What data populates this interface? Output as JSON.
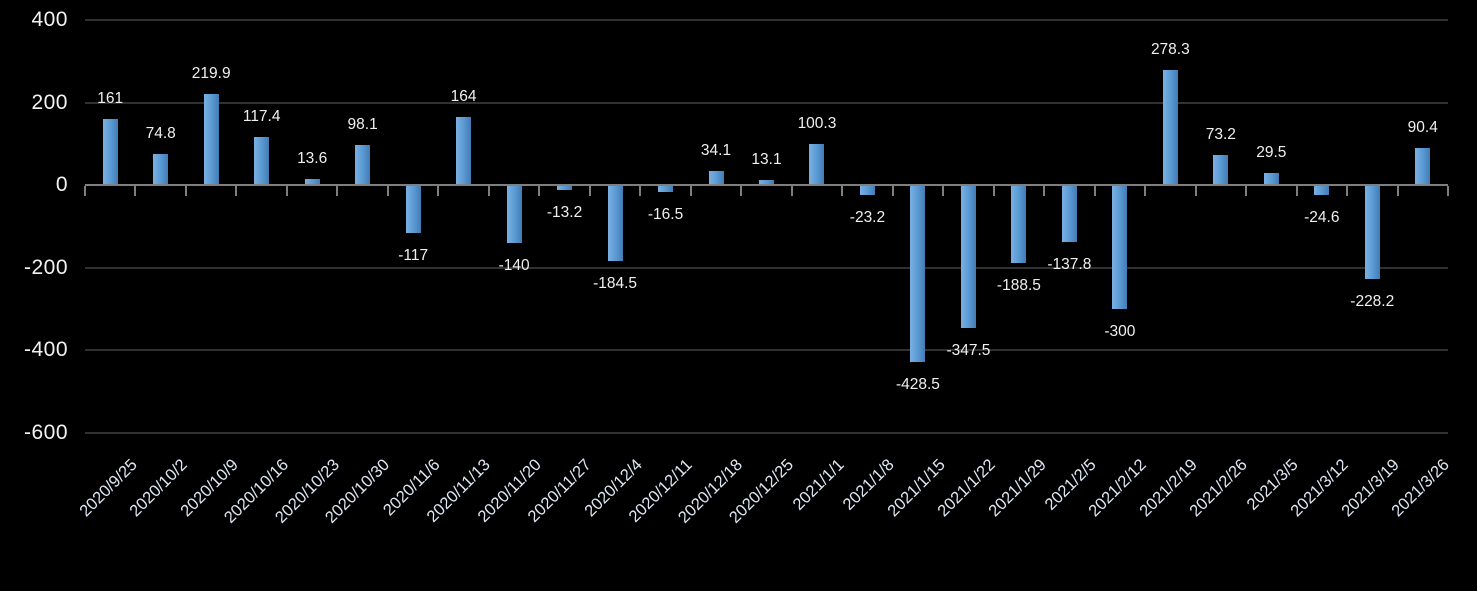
{
  "chart": {
    "background_color": "#000000",
    "bar_color": "#5b9bd5",
    "bar_gradient_left": "#7ab0e2",
    "bar_gradient_mid": "#5b9bd5",
    "bar_gradient_right": "#437cb4",
    "gridline_color": "#313131",
    "axis_color": "#7f7f7f",
    "y_label_color": "#f2f2f2",
    "data_label_color": "#f0f0f0",
    "x_label_color": "#dde6f2"
  },
  "chart_data": {
    "type": "bar",
    "title": "",
    "xlabel": "",
    "ylabel": "",
    "categories": [
      "2020/9/25",
      "2020/10/2",
      "2020/10/9",
      "2020/10/16",
      "2020/10/23",
      "2020/10/30",
      "2020/11/6",
      "2020/11/13",
      "2020/11/20",
      "2020/11/27",
      "2020/12/4",
      "2020/12/11",
      "2020/12/18",
      "2020/12/25",
      "2021/1/1",
      "2021/1/8",
      "2021/1/15",
      "2021/1/22",
      "2021/1/29",
      "2021/2/5",
      "2021/2/12",
      "2021/2/19",
      "2021/2/26",
      "2021/3/5",
      "2021/3/12",
      "2021/3/19",
      "2021/3/26"
    ],
    "values": [
      161,
      74.8,
      219.9,
      117.4,
      13.6,
      98.1,
      -117,
      164,
      -140,
      -13.2,
      -184.5,
      -16.5,
      34.1,
      13.1,
      100.3,
      -23.2,
      -428.5,
      -347.5,
      -188.5,
      -137.8,
      -300,
      278.3,
      73.2,
      29.5,
      -24.6,
      -228.2,
      90.4
    ],
    "data_labels": [
      "161",
      "74.8",
      "219.9",
      "117.4",
      "13.6",
      "98.1",
      "-117",
      "164",
      "-140",
      "-13.2",
      "-184.5",
      "-16.5",
      "34.1",
      "13.1",
      "100.3",
      "-23.2",
      "-428.5",
      "-347.5",
      "-188.5",
      "-137.8",
      "-300",
      "278.3",
      "73.2",
      "29.5",
      "-24.6",
      "-228.2",
      "90.4"
    ],
    "yticks": [
      400,
      200,
      0,
      -200,
      -400,
      -600
    ],
    "ylim": [
      -600,
      400
    ],
    "x_tick_rotation": -45,
    "grid": true,
    "legend": false,
    "data_labels_shown": true
  }
}
